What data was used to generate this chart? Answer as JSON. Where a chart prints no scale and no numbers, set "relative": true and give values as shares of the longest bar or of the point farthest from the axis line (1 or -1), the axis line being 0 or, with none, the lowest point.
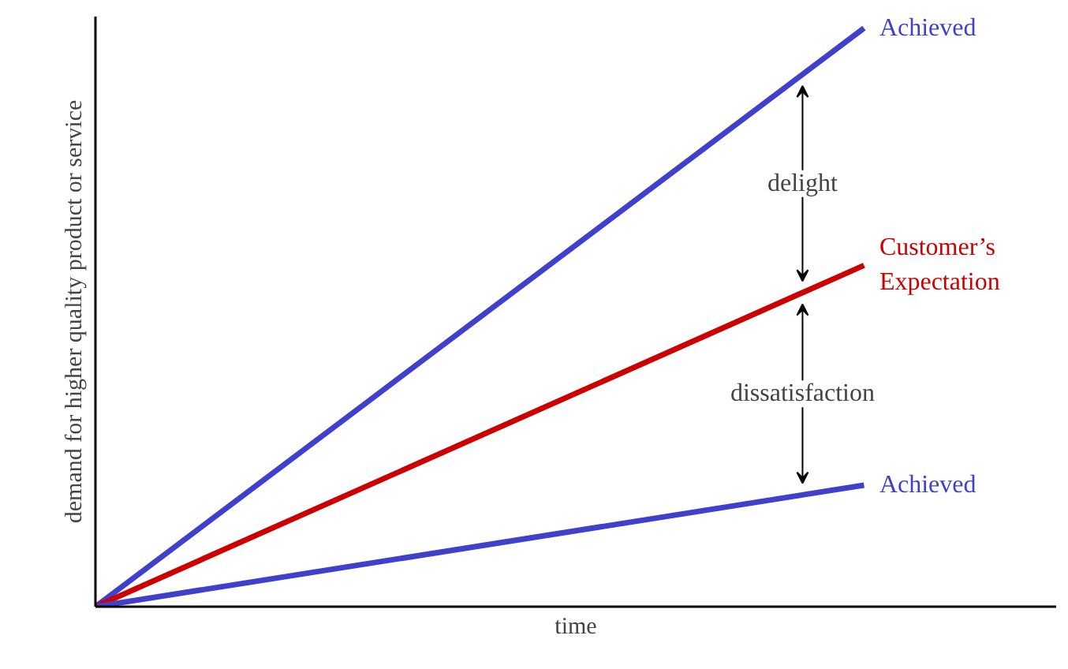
{
  "chart_data": {
    "type": "line",
    "relative": true,
    "xlabel": "time",
    "ylabel": "demand for higher quality product or service",
    "categories": [
      null,
      null
    ],
    "series": [
      {
        "name": "Achieved",
        "color": "#4040cc",
        "values": [
          0,
          1
        ]
      },
      {
        "name": "Customer’s\nExpectation",
        "color": "#cc0000",
        "values": [
          0,
          0.59
        ]
      },
      {
        "name": "Achieved",
        "color": "#4040cc",
        "values": [
          0,
          0.21
        ]
      }
    ],
    "annotations": [
      "delight",
      "dissatisfaction"
    ],
    "marker": "none",
    "line_style": "solid"
  }
}
